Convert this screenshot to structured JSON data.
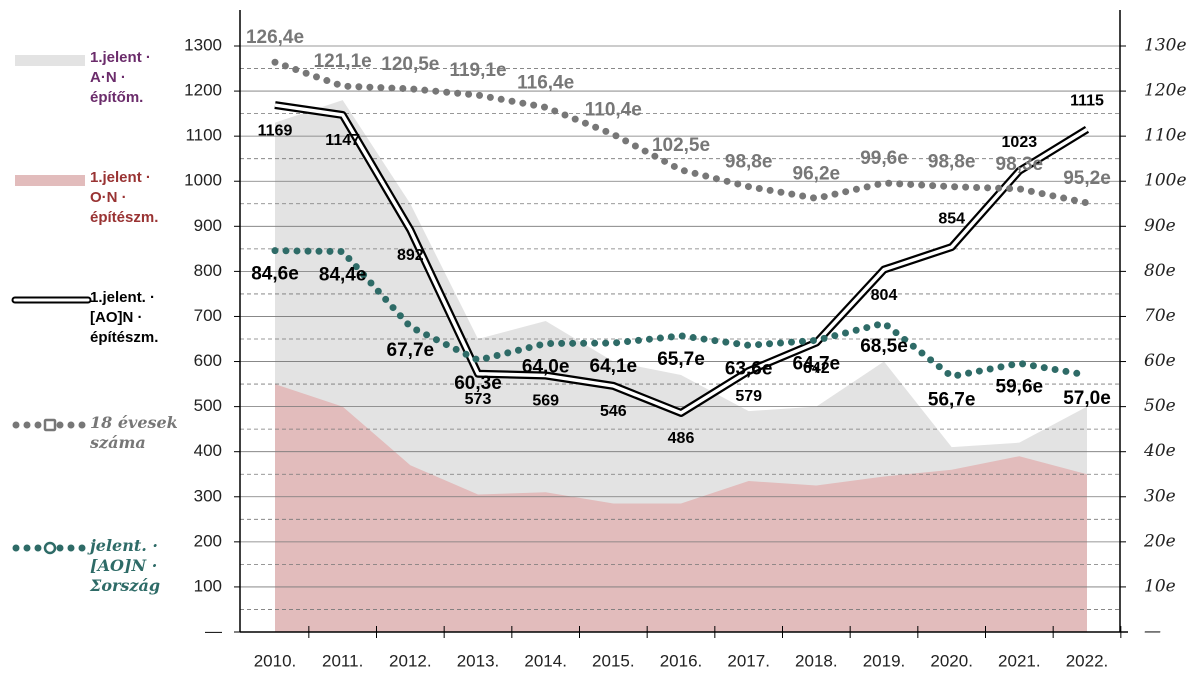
{
  "chart_data": {
    "type": "line",
    "categories": [
      "2010.",
      "2011.",
      "2012.",
      "2013.",
      "2014.",
      "2015.",
      "2016.",
      "2017.",
      "2018.",
      "2019.",
      "2020.",
      "2021.",
      "2022."
    ],
    "ylim": [
      0,
      1300
    ],
    "yticks": [
      {
        "value": 0,
        "label": "—"
      },
      100,
      200,
      300,
      400,
      500,
      600,
      700,
      800,
      900,
      1000,
      1100,
      1200,
      1300
    ],
    "y_minor_ticks": [
      50,
      150,
      250,
      350,
      450,
      550,
      650,
      750,
      850,
      950,
      1050,
      1150,
      1250
    ],
    "y2lim": [
      0,
      130
    ],
    "y2ticks": [
      {
        "value": 0,
        "label": "—"
      },
      {
        "value": 10,
        "label": "10e"
      },
      {
        "value": 20,
        "label": "20e"
      },
      {
        "value": 30,
        "label": "30e"
      },
      {
        "value": 40,
        "label": "40e"
      },
      {
        "value": 50,
        "label": "50e"
      },
      {
        "value": 60,
        "label": "60e"
      },
      {
        "value": 70,
        "label": "70e"
      },
      {
        "value": 80,
        "label": "80e"
      },
      {
        "value": 90,
        "label": "90e"
      },
      {
        "value": 100,
        "label": "100e"
      },
      {
        "value": 110,
        "label": "110e"
      },
      {
        "value": 120,
        "label": "120e"
      },
      {
        "value": 130,
        "label": "130e"
      }
    ],
    "grid": true,
    "series": [
      {
        "name": "1.jelent · A·N · építőm.",
        "kind": "area",
        "color": "#e3e3e3",
        "label_color": "#6b2c6b",
        "values": [
          1130,
          1180,
          950,
          650,
          690,
          600,
          570,
          490,
          500,
          600,
          410,
          420,
          500
        ]
      },
      {
        "name": "1.jelent · O·N · építészm.",
        "kind": "area",
        "color": "#e2bcbc",
        "label_color": "#993333",
        "values": [
          550,
          500,
          370,
          305,
          310,
          285,
          285,
          335,
          325,
          345,
          360,
          390,
          350
        ]
      },
      {
        "name": "1.jelent. · [AO]N · építészm.",
        "kind": "line",
        "color": "#000000",
        "label_color": "#000000",
        "values": [
          1169,
          1147,
          892,
          573,
          569,
          546,
          486,
          579,
          642,
          804,
          854,
          1023,
          1115
        ]
      },
      {
        "name": "18 évesek száma",
        "kind": "dots",
        "axis": "y2",
        "color": "#777777",
        "label_color": "#777777",
        "values": [
          126.4,
          121.1,
          120.5,
          119.1,
          116.4,
          110.4,
          102.5,
          98.8,
          96.2,
          99.6,
          98.8,
          98.3,
          95.2
        ],
        "value_labels": [
          "126,4e",
          "121,1e",
          "120,5e",
          "119,1e",
          "116,4e",
          "110,4e",
          "102,5e",
          "98,8e",
          "96,2e",
          "99,6e",
          "98,8e",
          "98,3e",
          "95,2e"
        ]
      },
      {
        "name": "jelent. · [AO]N · Σország",
        "kind": "dots",
        "axis": "y2",
        "color": "#2e6b67",
        "label_color": "#2e6b67",
        "values": [
          84.6,
          84.4,
          67.7,
          60.3,
          64.0,
          64.1,
          65.7,
          63.6,
          64.7,
          68.5,
          56.7,
          59.6,
          57.0
        ],
        "value_labels": [
          "84,6e",
          "84,4e",
          "67,7e",
          "60,3e",
          "64,0e",
          "64,1e",
          "65,7e",
          "63,6e",
          "64,7e",
          "68,5e",
          "56,7e",
          "59,6e",
          "57,0e"
        ]
      }
    ]
  }
}
